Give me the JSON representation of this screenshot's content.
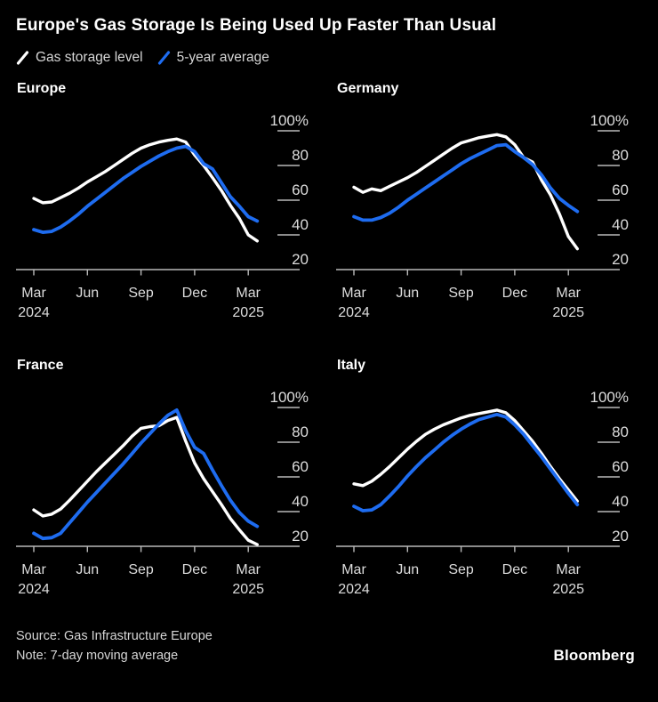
{
  "title": "Europe's Gas Storage Is Being Used Up Faster Than Usual",
  "legend": [
    {
      "label": "Gas storage level",
      "color": "#ffffff"
    },
    {
      "label": "5-year average",
      "color": "#1e6cf0"
    }
  ],
  "colors": {
    "background": "#000000",
    "axis": "#b9b9b9",
    "tick_text": "#dcdcdc",
    "gas_storage_line": "#ffffff",
    "five_year_avg_line": "#1e6cf0"
  },
  "x_axis": {
    "tick_labels": [
      "Mar",
      "Jun",
      "Sep",
      "Dec",
      "Mar"
    ],
    "first_tick_year": "2024",
    "last_tick_year": "2025"
  },
  "y_axis": {
    "tick_labels": [
      "100%",
      "80",
      "60",
      "40",
      "20"
    ],
    "tick_values": [
      100,
      80,
      60,
      40,
      20
    ],
    "min": 20,
    "max": 100
  },
  "source": "Source: Gas Infrastructure Europe",
  "note": "Note: 7-day moving average",
  "brand": "Bloomberg",
  "chart_data": {
    "type": "line",
    "unit": "% full",
    "ylim": [
      20,
      100
    ],
    "grid": "off",
    "legend_position": "top-left",
    "series_names": [
      "Gas storage level",
      "5-year average"
    ],
    "x": [
      "2024-03-01",
      "2024-03-15",
      "2024-04-01",
      "2024-04-15",
      "2024-05-01",
      "2024-05-15",
      "2024-06-01",
      "2024-06-15",
      "2024-07-01",
      "2024-07-15",
      "2024-08-01",
      "2024-08-15",
      "2024-09-01",
      "2024-09-15",
      "2024-10-01",
      "2024-10-15",
      "2024-11-01",
      "2024-11-15",
      "2024-12-01",
      "2024-12-15",
      "2025-01-01",
      "2025-01-15",
      "2025-02-01",
      "2025-02-15",
      "2025-03-01",
      "2025-03-15"
    ],
    "panels": [
      {
        "title": "Europe",
        "gas_storage_level": [
          61,
          58.5,
          59,
          61.5,
          64,
          67,
          70.5,
          73.5,
          76.5,
          80,
          83.5,
          87,
          90,
          92,
          93.5,
          94.5,
          95.3,
          93.5,
          86,
          80,
          73,
          65.5,
          57,
          49.5,
          40,
          36.5
        ],
        "five_year_average": [
          43,
          41.5,
          42,
          44.5,
          48,
          52,
          56.5,
          60.5,
          64.5,
          68.5,
          72.5,
          76,
          79.5,
          82.5,
          85.5,
          88,
          90,
          91,
          88,
          81,
          78,
          70,
          62,
          56.5,
          50.5,
          48
        ]
      },
      {
        "title": "Germany",
        "gas_storage_level": [
          67.5,
          64.5,
          66.5,
          65.5,
          68,
          70.5,
          73,
          76,
          79.5,
          83,
          86.5,
          90,
          93,
          94.5,
          96,
          97,
          97.8,
          96.5,
          92,
          84.5,
          82,
          71.5,
          63,
          52,
          39,
          32
        ],
        "five_year_average": [
          50.5,
          48.5,
          48.5,
          50,
          52.5,
          56,
          60,
          63.5,
          67,
          70.5,
          74,
          77.5,
          81,
          84,
          86.5,
          89,
          91.5,
          92,
          88,
          84.5,
          80.5,
          74.5,
          67,
          61,
          57,
          53.5
        ]
      },
      {
        "title": "France",
        "gas_storage_level": [
          41,
          37.5,
          38.5,
          41.5,
          46.5,
          52,
          57.5,
          63,
          68,
          73,
          78,
          83.5,
          88,
          89,
          89.5,
          92.5,
          94.3,
          80.5,
          68,
          59,
          51.5,
          44,
          36,
          29.5,
          23.5,
          21
        ],
        "five_year_average": [
          27.5,
          24.5,
          25,
          27.5,
          33.5,
          39.5,
          45.5,
          51,
          56.5,
          62,
          67.5,
          73.5,
          79.5,
          85,
          90.5,
          95.5,
          98.5,
          86.5,
          77,
          73.5,
          64,
          55,
          46.5,
          39.5,
          34.5,
          31.5
        ]
      },
      {
        "title": "Italy",
        "gas_storage_level": [
          56,
          55,
          57.5,
          61.5,
          66,
          71,
          76,
          80.5,
          84.5,
          87.5,
          90,
          92,
          94,
          95.5,
          96.5,
          97.5,
          98.5,
          97,
          92.5,
          86.5,
          80.5,
          73.5,
          66,
          59,
          52.5,
          46
        ],
        "five_year_average": [
          43,
          40.5,
          41,
          44,
          49,
          54.5,
          60.5,
          66,
          71,
          75.5,
          80,
          84,
          87.5,
          90.5,
          93,
          94.5,
          96,
          94.5,
          90,
          84.5,
          78,
          71.5,
          64.5,
          57.5,
          50.5,
          44
        ]
      }
    ]
  }
}
